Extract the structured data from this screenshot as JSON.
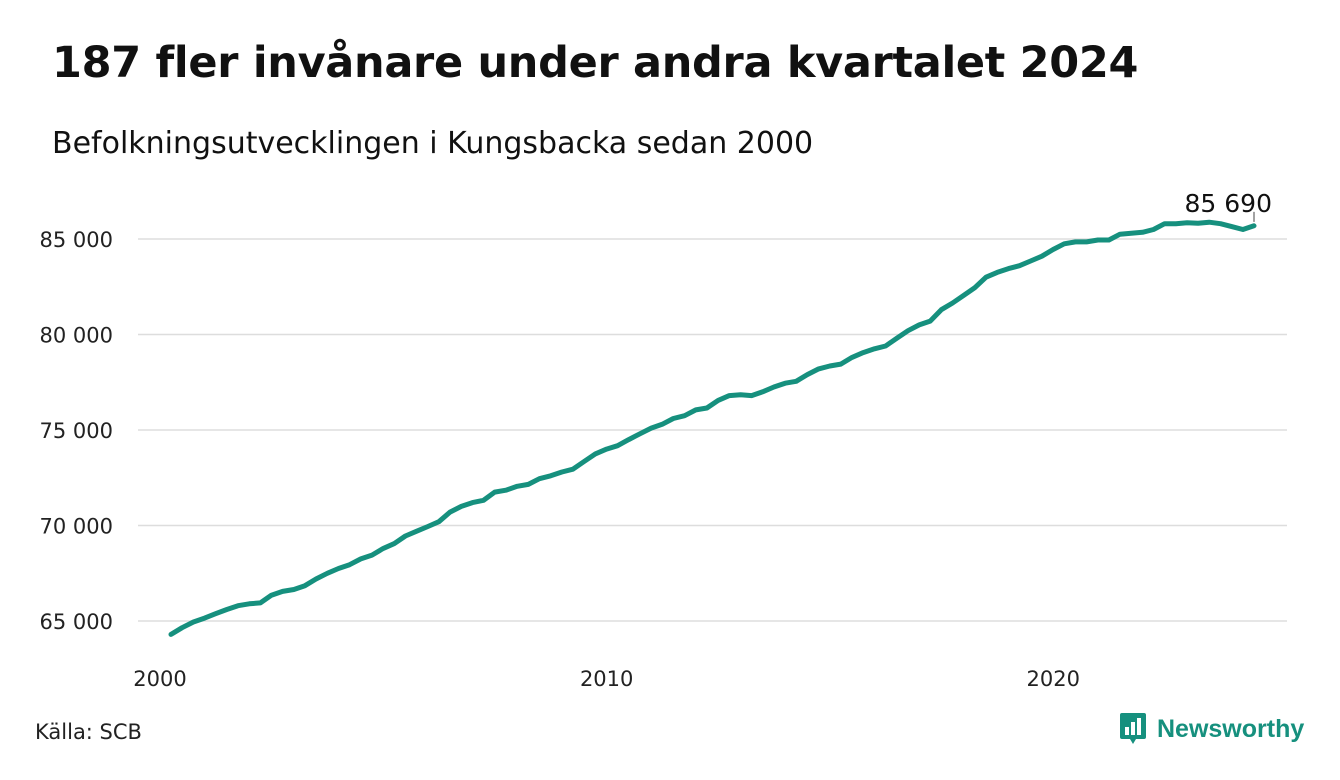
{
  "header": {
    "title": "187 fler invånare under andra kvartalet 2024",
    "subtitle": "Befolkningsutvecklingen i Kungsbacka sedan 2000"
  },
  "footer": {
    "source": "Källa: SCB",
    "brand": "Newsworthy",
    "brand_icon": "bar-chart-icon"
  },
  "colors": {
    "line": "#16907e",
    "grid": "#dddddd",
    "brand": "#16907e"
  },
  "chart_data": {
    "type": "line",
    "title": "187 fler invånare under andra kvartalet 2024",
    "subtitle": "Befolkningsutvecklingen i Kungsbacka sedan 2000",
    "xlabel": "",
    "ylabel": "",
    "x_ticks": [
      "2000",
      "2010",
      "2020"
    ],
    "y_ticks": [
      "65 000",
      "70 000",
      "75 000",
      "80 000",
      "85 000"
    ],
    "y_tick_values": [
      65000,
      70000,
      75000,
      80000,
      85000
    ],
    "ylim": [
      64300,
      86300
    ],
    "grid": "horizontal",
    "end_label": "85 690",
    "series": [
      {
        "name": "",
        "x": [
          "2000-03-31",
          "2000-06-30",
          "2000-09-30",
          "2000-12-31",
          "2001-03-31",
          "2001-06-30",
          "2001-09-30",
          "2001-12-31",
          "2002-03-31",
          "2002-06-30",
          "2002-09-30",
          "2002-12-31",
          "2003-03-31",
          "2003-06-30",
          "2003-09-30",
          "2003-12-31",
          "2004-03-31",
          "2004-06-30",
          "2004-09-30",
          "2004-12-31",
          "2005-03-31",
          "2005-06-30",
          "2005-09-30",
          "2005-12-31",
          "2006-03-31",
          "2006-06-30",
          "2006-09-30",
          "2006-12-31",
          "2007-03-31",
          "2007-06-30",
          "2007-09-30",
          "2007-12-31",
          "2008-03-31",
          "2008-06-30",
          "2008-09-30",
          "2008-12-31",
          "2009-03-31",
          "2009-06-30",
          "2009-09-30",
          "2009-12-31",
          "2010-03-31",
          "2010-06-30",
          "2010-09-30",
          "2010-12-31",
          "2011-03-31",
          "2011-06-30",
          "2011-09-30",
          "2011-12-31",
          "2012-03-31",
          "2012-06-30",
          "2012-09-30",
          "2012-12-31",
          "2013-03-31",
          "2013-06-30",
          "2013-09-30",
          "2013-12-31",
          "2014-03-31",
          "2014-06-30",
          "2014-09-30",
          "2014-12-31",
          "2015-03-31",
          "2015-06-30",
          "2015-09-30",
          "2015-12-31",
          "2016-03-31",
          "2016-06-30",
          "2016-09-30",
          "2016-12-31",
          "2017-03-31",
          "2017-06-30",
          "2017-09-30",
          "2017-12-31",
          "2018-03-31",
          "2018-06-30",
          "2018-09-30",
          "2018-12-31",
          "2019-03-31",
          "2019-06-30",
          "2019-09-30",
          "2019-12-31",
          "2020-03-31",
          "2020-06-30",
          "2020-09-30",
          "2020-12-31",
          "2021-03-31",
          "2021-06-30",
          "2021-09-30",
          "2021-12-31",
          "2022-03-31",
          "2022-06-30",
          "2022-09-30",
          "2022-12-31",
          "2023-03-31",
          "2023-06-30",
          "2023-09-30",
          "2023-12-31",
          "2024-03-31",
          "2024-06-30"
        ],
        "values": [
          64300,
          64650,
          64950,
          65150,
          65380,
          65600,
          65800,
          65900,
          65950,
          66350,
          66550,
          66650,
          66850,
          67200,
          67500,
          67750,
          67950,
          68250,
          68450,
          68800,
          69050,
          69450,
          69700,
          69950,
          70200,
          70700,
          71000,
          71200,
          71320,
          71750,
          71850,
          72050,
          72150,
          72450,
          72600,
          72800,
          72950,
          73350,
          73750,
          74000,
          74180,
          74500,
          74800,
          75100,
          75300,
          75600,
          75750,
          76050,
          76150,
          76550,
          76800,
          76850,
          76800,
          77000,
          77250,
          77450,
          77550,
          77900,
          78200,
          78350,
          78450,
          78800,
          79050,
          79250,
          79400,
          79800,
          80200,
          80500,
          80700,
          81300,
          81650,
          82050,
          82450,
          83000,
          83250,
          83450,
          83600,
          83850,
          84100,
          84450,
          84750,
          84850,
          84850,
          84950,
          84950,
          85250,
          85300,
          85350,
          85500,
          85800,
          85800,
          85850,
          85820,
          85880,
          85800,
          85650,
          85500,
          85690
        ]
      }
    ]
  }
}
